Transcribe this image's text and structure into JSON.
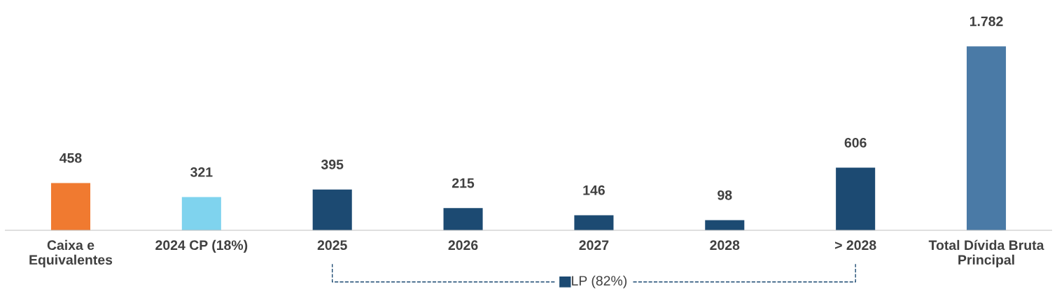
{
  "chart_data": {
    "type": "bar",
    "categories": [
      "Caixa e\nEquivalentes",
      "2024 CP (18%)",
      "2025",
      "2026",
      "2027",
      "2028",
      "> 2028",
      "Total Dívida Bruta\nPrincipal"
    ],
    "values": [
      458,
      321,
      395,
      215,
      146,
      98,
      606,
      1782
    ],
    "value_labels": [
      "458",
      "321",
      "395",
      "215",
      "146",
      "98",
      "606",
      "1.782"
    ],
    "colors": [
      "#f07a30",
      "#7fd3ee",
      "#1c4a72",
      "#1c4a72",
      "#1c4a72",
      "#1c4a72",
      "#1c4a72",
      "#4a7aa6"
    ],
    "annotations": [
      "LP (82%)"
    ],
    "grid": false,
    "legend": false
  }
}
